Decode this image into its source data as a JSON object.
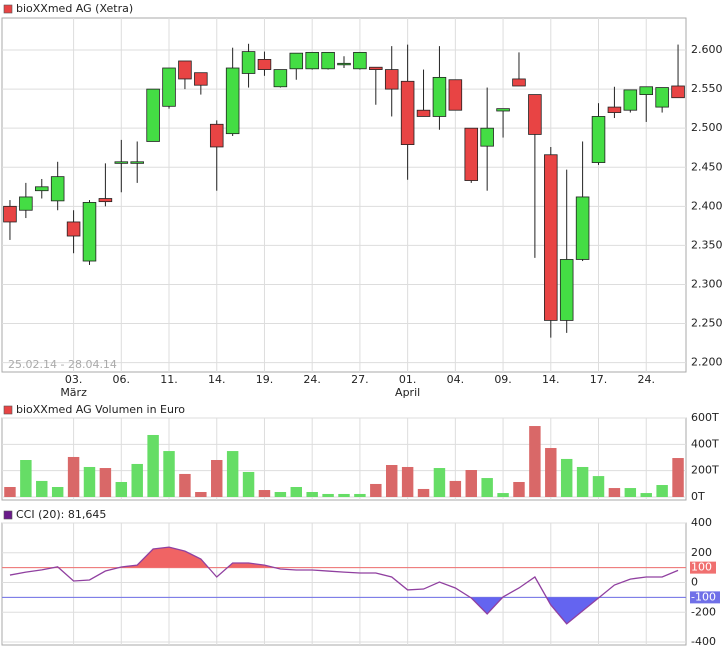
{
  "chart_data": [
    {
      "type": "candlestick",
      "title": "bioXXmed AG (Xetra)",
      "legend_color": "#e84444",
      "date_range": "25.02.14 - 28.04.14",
      "categories": [
        null,
        null,
        null,
        null,
        "03.",
        null,
        null,
        "06.",
        null,
        null,
        "11.",
        null,
        null,
        "14.",
        null,
        null,
        "19.",
        null,
        null,
        "24.",
        null,
        null,
        "27.",
        null,
        null,
        "01.",
        null,
        null,
        "04.",
        null,
        null,
        "09.",
        null,
        null,
        "14.",
        null,
        null,
        "17.",
        null,
        null,
        "24.",
        null,
        null
      ],
      "months": [
        null,
        null,
        null,
        null,
        "März",
        null,
        null,
        null,
        null,
        null,
        null,
        null,
        null,
        null,
        null,
        null,
        null,
        null,
        null,
        null,
        null,
        null,
        null,
        null,
        null,
        "April",
        null,
        null,
        null,
        null,
        null,
        null,
        null,
        null,
        null,
        null,
        null,
        null,
        null,
        null,
        null,
        null,
        null
      ],
      "open": [
        2.4,
        2.395,
        2.42,
        2.407,
        2.38,
        2.33,
        2.41,
        2.455,
        2.455,
        2.483,
        2.528,
        2.586,
        2.571,
        2.505,
        2.493,
        2.57,
        2.588,
        2.553,
        2.576,
        2.576,
        2.576,
        2.582,
        2.576,
        2.578,
        2.575,
        2.56,
        2.523,
        2.515,
        2.562,
        2.5,
        2.477,
        2.522,
        2.563,
        2.543,
        2.466,
        2.254,
        2.332,
        2.456,
        2.527,
        2.523,
        2.543,
        2.527,
        2.554
      ],
      "high": [
        2.408,
        2.43,
        2.435,
        2.457,
        2.395,
        2.408,
        2.455,
        2.485,
        2.483,
        2.55,
        2.577,
        2.586,
        2.571,
        2.51,
        2.603,
        2.608,
        2.598,
        2.575,
        2.596,
        2.597,
        2.597,
        2.592,
        2.597,
        2.578,
        2.605,
        2.607,
        2.575,
        2.605,
        2.562,
        2.5,
        2.552,
        2.525,
        2.597,
        2.543,
        2.476,
        2.447,
        2.483,
        2.532,
        2.553,
        2.549,
        2.553,
        2.552,
        2.607
      ],
      "low": [
        2.357,
        2.385,
        2.41,
        2.395,
        2.34,
        2.325,
        2.4,
        2.418,
        2.43,
        2.483,
        2.525,
        2.55,
        2.543,
        2.42,
        2.49,
        2.552,
        2.567,
        2.552,
        2.562,
        2.575,
        2.575,
        2.577,
        2.575,
        2.53,
        2.515,
        2.434,
        2.515,
        2.498,
        2.523,
        2.43,
        2.42,
        2.488,
        2.554,
        2.334,
        2.232,
        2.238,
        2.33,
        2.453,
        2.513,
        2.52,
        2.508,
        2.52,
        2.539
      ],
      "close": [
        2.38,
        2.412,
        2.425,
        2.438,
        2.362,
        2.405,
        2.406,
        2.457,
        2.457,
        2.55,
        2.577,
        2.563,
        2.555,
        2.476,
        2.577,
        2.598,
        2.575,
        2.575,
        2.596,
        2.597,
        2.597,
        2.583,
        2.597,
        2.575,
        2.55,
        2.479,
        2.515,
        2.565,
        2.523,
        2.433,
        2.5,
        2.525,
        2.554,
        2.492,
        2.254,
        2.332,
        2.412,
        2.515,
        2.52,
        2.549,
        2.553,
        2.552,
        2.539
      ],
      "up_color": "#44dd44",
      "down_color": "#e84444",
      "ylim": [
        2.188,
        2.641
      ],
      "yticks": [
        {
          "value": 2.2,
          "label": "2.200"
        },
        {
          "value": 2.25,
          "label": "2.250"
        },
        {
          "value": 2.3,
          "label": "2.300"
        },
        {
          "value": 2.35,
          "label": "2.350"
        },
        {
          "value": 2.4,
          "label": "2.400"
        },
        {
          "value": 2.45,
          "label": "2.450"
        },
        {
          "value": 2.5,
          "label": "2.500"
        },
        {
          "value": 2.55,
          "label": "2.550"
        },
        {
          "value": 2.6,
          "label": "2.600"
        }
      ],
      "grid": true
    },
    {
      "type": "bar",
      "title": "bioXXmed AG Volumen in Euro",
      "legend_color": "#e84444",
      "values": [
        76,
        281,
        122,
        76,
        304,
        228,
        220,
        114,
        251,
        471,
        349,
        175,
        38,
        281,
        349,
        190,
        53,
        38,
        76,
        38,
        23,
        23,
        23,
        99,
        243,
        228,
        61,
        220,
        122,
        205,
        144,
        30,
        114,
        539,
        372,
        289,
        228,
        159,
        68,
        68,
        30,
        91,
        296
      ],
      "up_color": "#66dd66",
      "down_color": "#d96868",
      "ylim": [
        0,
        600
      ],
      "yticks": [
        {
          "value": 0,
          "label": "0T"
        },
        {
          "value": 200,
          "label": "200T"
        },
        {
          "value": 400,
          "label": "400T"
        },
        {
          "value": 600,
          "label": "600T"
        }
      ],
      "grid": true
    },
    {
      "type": "line",
      "title": "CCI (20): 81,645",
      "legend_color": "#6a1a8a",
      "color": "#9040a0",
      "values": [
        50,
        70,
        85,
        105,
        10,
        17,
        77,
        104,
        117,
        225,
        238,
        211,
        158,
        37,
        131,
        131,
        117,
        91,
        84,
        84,
        77,
        70,
        64,
        64,
        37,
        -50,
        -44,
        3,
        -37,
        -104,
        -211,
        -97,
        -37,
        37,
        -151,
        -278,
        -191,
        -104,
        -17,
        23,
        37,
        37,
        81.645
      ],
      "ylim": [
        -400,
        400
      ],
      "yticks": [
        -400,
        -200,
        -100,
        0,
        100,
        200,
        400
      ],
      "upper_level": 100,
      "upper_color": "#f07070",
      "upper_fill": "#f06464",
      "lower_level": -100,
      "lower_color": "#7070e8",
      "lower_fill": "#6464f0",
      "grid": true
    }
  ]
}
